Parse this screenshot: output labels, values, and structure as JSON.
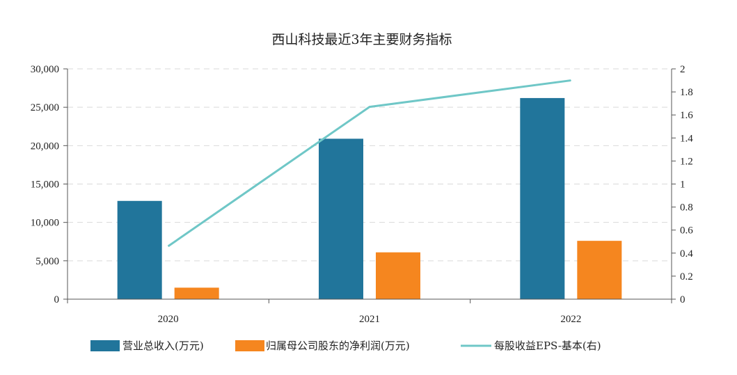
{
  "chart_data": {
    "type": "bar+line",
    "title": "西山科技最近3年主要财务指标",
    "categories": [
      "2020",
      "2021",
      "2022"
    ],
    "series": [
      {
        "name": "营业总收入(万元)",
        "type": "bar",
        "axis": "left",
        "color": "#21759b",
        "values": [
          12800,
          20900,
          26200
        ]
      },
      {
        "name": "归属母公司股东的净利润(万元)",
        "type": "bar",
        "axis": "left",
        "color": "#f5861f",
        "values": [
          1500,
          6100,
          7600
        ]
      },
      {
        "name": "每股收益EPS-基本(右)",
        "type": "line",
        "axis": "right",
        "color": "#6fc7c7",
        "values": [
          0.46,
          1.67,
          1.9
        ]
      }
    ],
    "left_axis": {
      "ylim": [
        0,
        30000
      ],
      "ticks": [
        "0",
        "5,000",
        "10,000",
        "15,000",
        "20,000",
        "25,000",
        "30,000"
      ]
    },
    "right_axis": {
      "ylim": [
        0,
        2
      ],
      "ticks": [
        "0",
        "0.2",
        "0.4",
        "0.6",
        "0.8",
        "1",
        "1.2",
        "1.4",
        "1.6",
        "1.8",
        "2"
      ]
    },
    "grid": true,
    "legend_position": "bottom"
  }
}
